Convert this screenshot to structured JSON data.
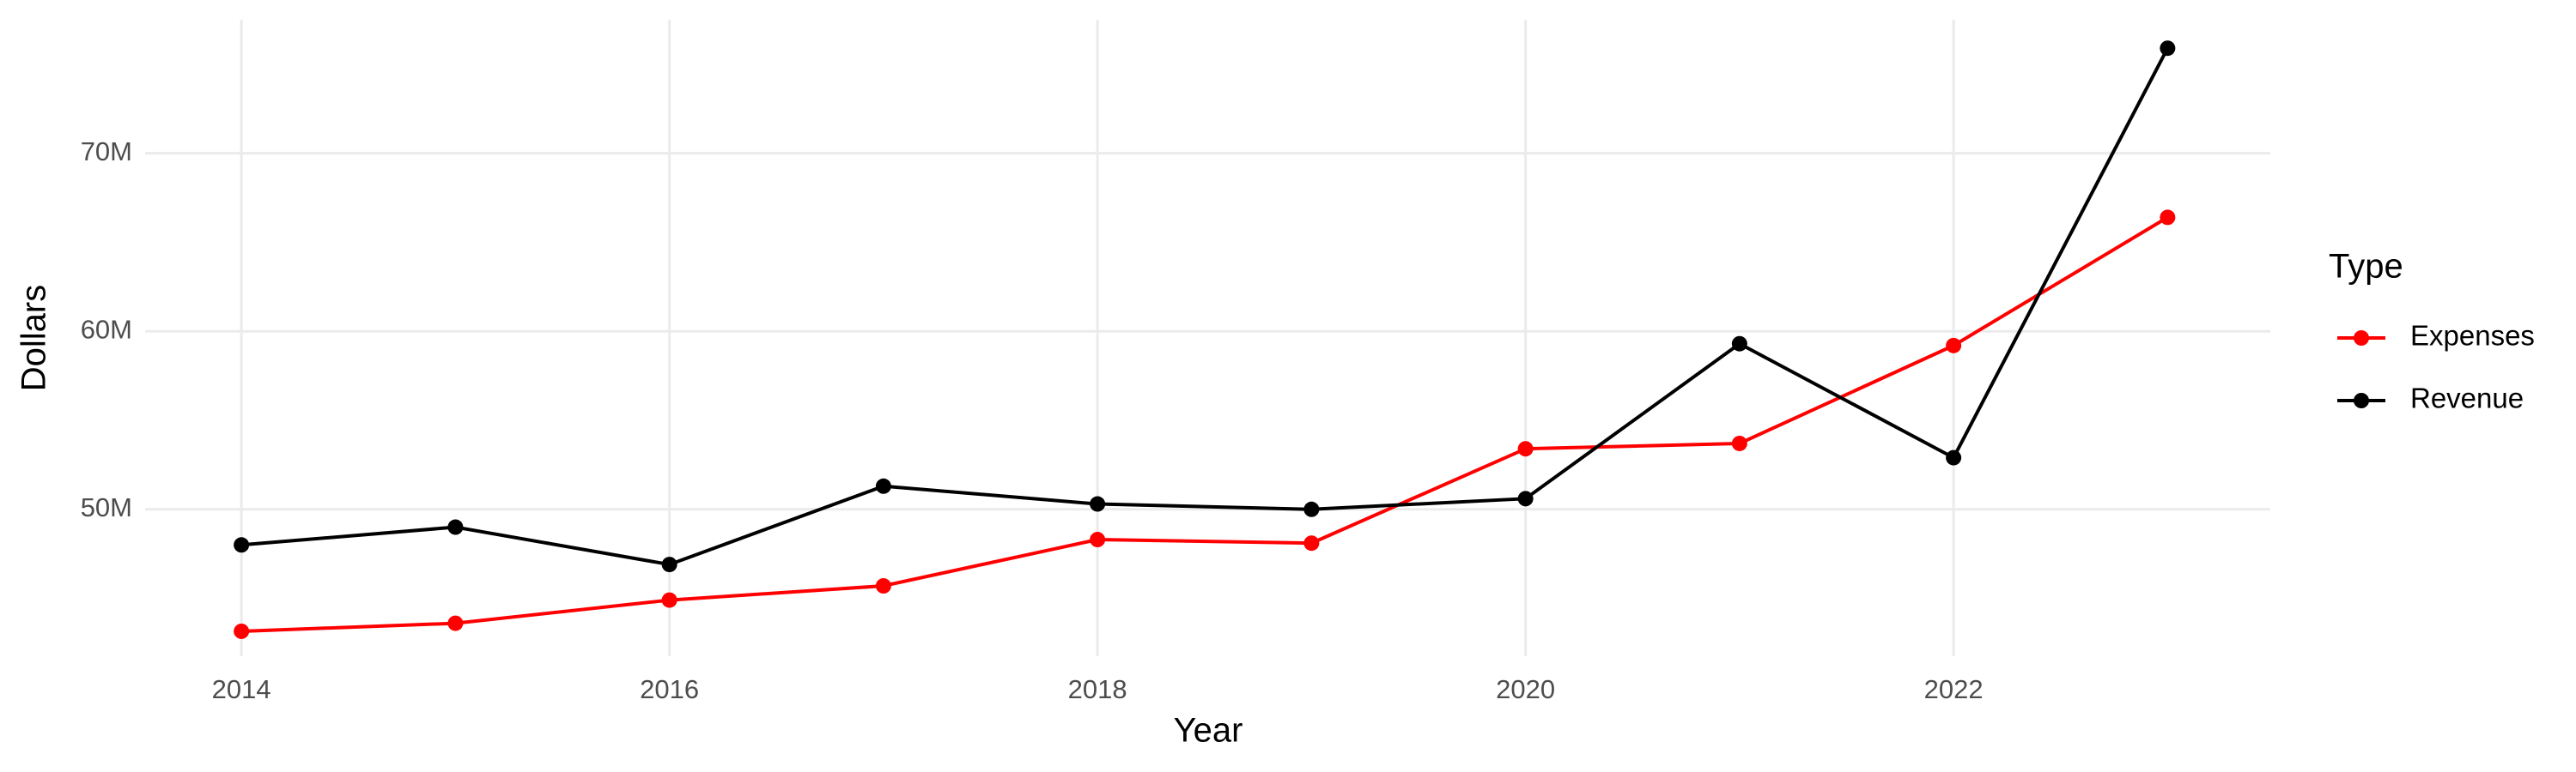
{
  "chart_data": {
    "type": "line",
    "x_label": "Year",
    "y_label": "Dollars",
    "legend_title": "Type",
    "x": [
      2014,
      2015,
      2016,
      2017,
      2018,
      2019,
      2020,
      2021,
      2022,
      2023
    ],
    "series": [
      {
        "name": "Expenses",
        "color": "#ff0000",
        "values": [
          43150000,
          43600000,
          44900000,
          45700000,
          48300000,
          48100000,
          53400000,
          53700000,
          59200000,
          66400000
        ]
      },
      {
        "name": "Revenue",
        "color": "#000000",
        "values": [
          48000000,
          49000000,
          46900000,
          51300000,
          50300000,
          50000000,
          50600000,
          59300000,
          52900000,
          75900000
        ]
      }
    ],
    "xlim": [
      2013.55,
      2023.48
    ],
    "xticks": [
      2014,
      2016,
      2018,
      2020,
      2022
    ],
    "ylim": [
      41750000,
      77500000
    ],
    "yticks": [
      {
        "value": 50000000,
        "label": "50M"
      },
      {
        "value": 60000000,
        "label": "60M"
      },
      {
        "value": 70000000,
        "label": "70M"
      }
    ],
    "grid": true
  }
}
